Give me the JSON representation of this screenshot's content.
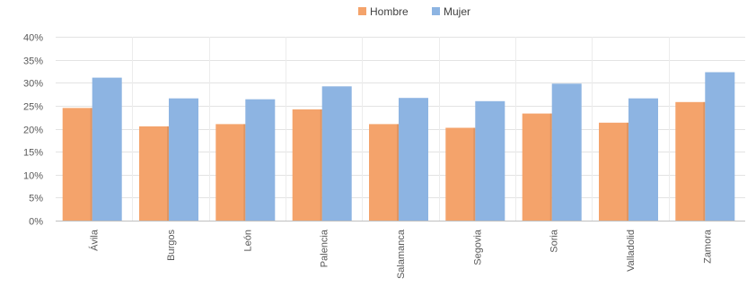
{
  "chart_data": {
    "type": "bar",
    "categories": [
      "Ávila",
      "Burgos",
      "León",
      "Palencia",
      "Salamanca",
      "Segovia",
      "Soria",
      "Valladolid",
      "Zamora"
    ],
    "series": [
      {
        "name": "Hombre",
        "values": [
          24.5,
          20.5,
          21.0,
          24.2,
          21.0,
          20.2,
          23.3,
          21.3,
          25.8
        ]
      },
      {
        "name": "Mujer",
        "values": [
          31.1,
          26.6,
          26.4,
          29.2,
          26.7,
          26.0,
          29.8,
          26.6,
          32.3
        ]
      }
    ],
    "colors": {
      "Hombre": "#F4A36B",
      "Mujer": "#8DB4E2"
    },
    "ylim": [
      0,
      40
    ],
    "y_ticks": [
      "0%",
      "5%",
      "10%",
      "15%",
      "20%",
      "25%",
      "30%",
      "35%",
      "40%"
    ],
    "grid": "both",
    "legend_position": "top"
  }
}
